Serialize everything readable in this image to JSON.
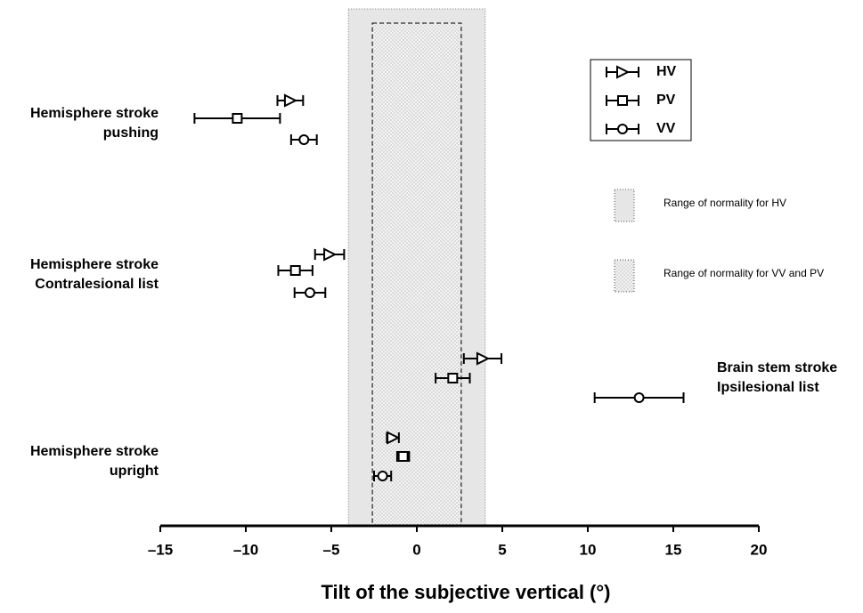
{
  "chart_data": {
    "type": "dot-error",
    "xlabel": "Tilt of the subjective vertical (°)",
    "categories": [
      [
        "Hemisphere stroke",
        "pushing"
      ],
      [
        "Hemisphere stroke",
        "Contralesional list"
      ],
      [
        "Brain stem stroke",
        "Ipsilesional list"
      ],
      [
        "Hemisphere stroke",
        "upright"
      ]
    ],
    "series": [
      {
        "name": "HV",
        "marker": "triangle",
        "color": "#000000",
        "values": [
          -7.4,
          -5.1,
          3.85,
          -1.4
        ],
        "errors": [
          0.75,
          0.85,
          1.1,
          0.35
        ]
      },
      {
        "name": "PV",
        "marker": "square",
        "color": "#000000",
        "values": [
          -10.5,
          -7.1,
          2.1,
          -0.8
        ],
        "errors": [
          2.5,
          1.0,
          1.0,
          0.35
        ]
      },
      {
        "name": "VV",
        "marker": "circle",
        "color": "#000000",
        "values": [
          -6.6,
          -6.25,
          13.0,
          -2.0
        ],
        "errors": [
          0.75,
          0.9,
          2.6,
          0.5
        ]
      }
    ],
    "ranges": [
      {
        "label": "Range of normality for HV",
        "xlim": [
          -4,
          4
        ]
      },
      {
        "label": "Range of normality for VV and PV",
        "xlim": [
          -2.6,
          2.6
        ]
      }
    ],
    "xlim": [
      -15,
      20
    ],
    "xticks": [
      {
        "value": -15,
        "label": "–15"
      },
      {
        "value": -10,
        "label": "–10"
      },
      {
        "value": -5,
        "label": "–5"
      },
      0,
      5,
      10,
      15,
      20
    ]
  }
}
